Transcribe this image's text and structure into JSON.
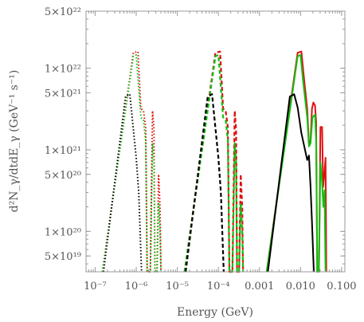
{
  "chart_data": {
    "type": "line",
    "xlabel": "Energy (GeV)",
    "ylabel": "d²N_γ/dtdE_γ (GeV⁻¹ s⁻¹)",
    "x_scale": "log",
    "y_scale": "log",
    "xlim": [
      6e-08,
      0.12
    ],
    "ylim": [
      3.2e+19,
      5e+22
    ],
    "x_ticks": [
      {
        "value": 1e-07,
        "label": "10⁻⁷"
      },
      {
        "value": 1e-06,
        "label": "10⁻⁶"
      },
      {
        "value": 1e-05,
        "label": "10⁻⁵"
      },
      {
        "value": 0.0001,
        "label": "10⁻⁴"
      },
      {
        "value": 0.001,
        "label": "0.001"
      },
      {
        "value": 0.01,
        "label": "0.010"
      },
      {
        "value": 0.1,
        "label": "0.100"
      }
    ],
    "y_ticks": [
      {
        "value": 5e+19,
        "label": "5×10¹⁹"
      },
      {
        "value": 1e+20,
        "label": "1×10²⁰"
      },
      {
        "value": 5e+20,
        "label": "5×10²⁰"
      },
      {
        "value": 1e+21,
        "label": "1×10²¹"
      },
      {
        "value": 5e+21,
        "label": "5×10²¹"
      },
      {
        "value": 1e+22,
        "label": "1×10²²"
      },
      {
        "value": 5e+22,
        "label": "5×10²²"
      }
    ],
    "grid": false,
    "legend": "none",
    "series": [
      {
        "color": "#e01010",
        "dash": "dotted",
        "width": 2,
        "points": [
          [
            1.5e-07,
            3.2e+19
          ],
          [
            8.5e-07,
            1.55e+22
          ],
          [
            1.1e-06,
            1.6e+22
          ],
          [
            1.3e-06,
            3.2e+21
          ],
          [
            1.5e-06,
            3e+21
          ],
          [
            1.7e-06,
            1.9e+21
          ],
          [
            1.85e-06,
            3.2e+19
          ],
          [
            2.2e-06,
            3.2e+19
          ],
          [
            2.5e-06,
            3e+21
          ],
          [
            2.7e-06,
            1.8e+21
          ],
          [
            2.85e-06,
            3.2e+19
          ],
          [
            3.2e-06,
            3.2e+19
          ],
          [
            3.5e-06,
            5e+20
          ],
          [
            3.8e-06,
            2e+20
          ],
          [
            4e-06,
            3.2e+19
          ]
        ]
      },
      {
        "color": "#10c010",
        "dash": "dotted",
        "width": 2,
        "points": [
          [
            1.5e-07,
            3.2e+19
          ],
          [
            8.5e-07,
            1.4e+22
          ],
          [
            1e-06,
            1.45e+22
          ],
          [
            1.3e-06,
            2.5e+21
          ],
          [
            1.5e-06,
            2.3e+21
          ],
          [
            1.7e-06,
            1.3e+21
          ],
          [
            1.85e-06,
            3.2e+19
          ],
          [
            2.2e-06,
            3.2e+19
          ],
          [
            2.5e-06,
            1.2e+21
          ],
          [
            2.7e-06,
            7e+20
          ],
          [
            2.85e-06,
            3.2e+19
          ],
          [
            3.2e-06,
            3.2e+19
          ],
          [
            3.5e-06,
            2.2e+20
          ],
          [
            3.8e-06,
            1e+20
          ],
          [
            4e-06,
            3.2e+19
          ]
        ]
      },
      {
        "color": "#000000",
        "dash": "dotted",
        "width": 2,
        "points": [
          [
            1.6e-07,
            3.2e+19
          ],
          [
            5.5e-07,
            4.5e+21
          ],
          [
            7e-07,
            4.8e+21
          ],
          [
            1e-06,
            8e+20
          ],
          [
            1.15e-06,
            3e+20
          ],
          [
            1.35e-06,
            3.2e+19
          ]
        ]
      },
      {
        "color": "#e01010",
        "dash": "dashed",
        "width": 2.2,
        "points": [
          [
            1.5e-05,
            3.2e+19
          ],
          [
            8.5e-05,
            1.55e+22
          ],
          [
            0.00011,
            1.6e+22
          ],
          [
            0.00013,
            3.2e+21
          ],
          [
            0.00015,
            3e+21
          ],
          [
            0.00017,
            1.9e+21
          ],
          [
            0.000185,
            3.2e+19
          ],
          [
            0.00022,
            3.2e+19
          ],
          [
            0.00025,
            3e+21
          ],
          [
            0.00027,
            1.8e+21
          ],
          [
            0.000285,
            3.2e+19
          ],
          [
            0.00032,
            3.2e+19
          ],
          [
            0.00035,
            5e+20
          ],
          [
            0.00038,
            2e+20
          ],
          [
            0.0004,
            3.2e+19
          ]
        ]
      },
      {
        "color": "#10c010",
        "dash": "dashed",
        "width": 2.2,
        "points": [
          [
            1.5e-05,
            3.2e+19
          ],
          [
            8.5e-05,
            1.4e+22
          ],
          [
            0.0001,
            1.45e+22
          ],
          [
            0.00013,
            2.5e+21
          ],
          [
            0.00015,
            2.3e+21
          ],
          [
            0.00017,
            1.3e+21
          ],
          [
            0.000185,
            3.2e+19
          ],
          [
            0.00022,
            3.2e+19
          ],
          [
            0.00025,
            1.2e+21
          ],
          [
            0.00027,
            7e+20
          ],
          [
            0.000285,
            3.2e+19
          ],
          [
            0.00032,
            3.2e+19
          ],
          [
            0.00035,
            2.2e+20
          ],
          [
            0.00038,
            1e+20
          ],
          [
            0.0004,
            3.2e+19
          ]
        ]
      },
      {
        "color": "#000000",
        "dash": "dashed",
        "width": 2.2,
        "points": [
          [
            1.6e-05,
            3.2e+19
          ],
          [
            5.5e-05,
            4.5e+21
          ],
          [
            7e-05,
            4.8e+21
          ],
          [
            0.0001,
            8e+20
          ],
          [
            0.000115,
            3e+20
          ],
          [
            0.000135,
            3.2e+19
          ]
        ]
      },
      {
        "color": "#e01010",
        "dash": "solid",
        "width": 2,
        "points": [
          [
            0.0015,
            3.2e+19
          ],
          [
            0.0085,
            1.55e+22
          ],
          [
            0.0105,
            1.6e+22
          ],
          [
            0.012,
            8e+21
          ],
          [
            0.0145,
            3.2e+21
          ],
          [
            0.016,
            1.2e+21
          ],
          [
            0.0175,
            1.3e+21
          ],
          [
            0.019,
            3.2e+21
          ],
          [
            0.0205,
            3.8e+21
          ],
          [
            0.0225,
            3.5e+21
          ],
          [
            0.024,
            2.2e+21
          ],
          [
            0.0255,
            3.2e+19
          ],
          [
            0.028,
            3.2e+19
          ],
          [
            0.0305,
            1.9e+21
          ],
          [
            0.0335,
            1.9e+21
          ],
          [
            0.0355,
            3.5e+20
          ],
          [
            0.038,
            5e+20
          ],
          [
            0.0405,
            8e+20
          ],
          [
            0.0425,
            3.2e+19
          ]
        ]
      },
      {
        "color": "#10c010",
        "dash": "solid",
        "width": 2,
        "points": [
          [
            0.0015,
            3.2e+19
          ],
          [
            0.0085,
            1.4e+22
          ],
          [
            0.01,
            1.45e+22
          ],
          [
            0.0115,
            7e+21
          ],
          [
            0.0145,
            2.5e+21
          ],
          [
            0.016,
            1.1e+21
          ],
          [
            0.0175,
            1.2e+21
          ],
          [
            0.0195,
            2.5e+21
          ],
          [
            0.0225,
            2.7e+21
          ],
          [
            0.024,
            1.3e+21
          ],
          [
            0.0255,
            3.2e+19
          ],
          [
            0.028,
            3.2e+19
          ],
          [
            0.0305,
            7e+20
          ],
          [
            0.0335,
            4e+20
          ],
          [
            0.036,
            2e+20
          ],
          [
            0.0385,
            3.2e+20
          ],
          [
            0.0405,
            3.2e+19
          ]
        ]
      },
      {
        "color": "#000000",
        "dash": "solid",
        "width": 2,
        "points": [
          [
            0.0016,
            3.2e+19
          ],
          [
            0.0055,
            4.5e+21
          ],
          [
            0.007,
            4.8e+21
          ],
          [
            0.0085,
            3.3e+21
          ],
          [
            0.0105,
            1.6e+21
          ],
          [
            0.0145,
            7.5e+20
          ],
          [
            0.016,
            8.5e+20
          ],
          [
            0.0175,
            3.5e+20
          ],
          [
            0.019,
            1.3e+20
          ],
          [
            0.021,
            3.2e+19
          ]
        ]
      }
    ]
  }
}
